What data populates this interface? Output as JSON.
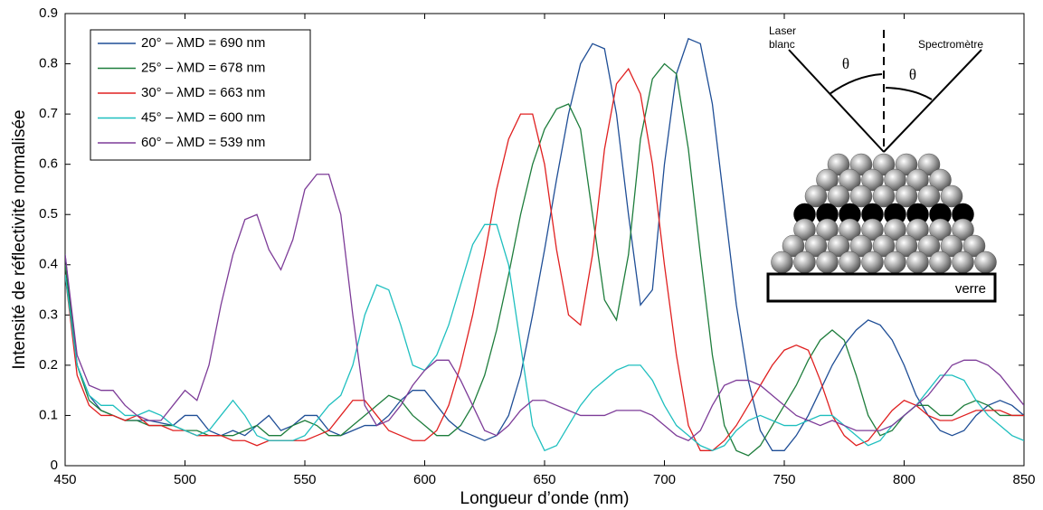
{
  "chart_data": {
    "type": "line",
    "x_label": "Longueur d’onde (nm)",
    "y_label": "Intensité de réflectivité normalisée",
    "xlim": [
      450,
      850
    ],
    "ylim": [
      0,
      0.9
    ],
    "xticks": [
      450,
      500,
      550,
      600,
      650,
      700,
      750,
      800,
      850
    ],
    "yticks": [
      0,
      0.1,
      0.2,
      0.3,
      0.4,
      0.5,
      0.6,
      0.7,
      0.8,
      0.9
    ],
    "legend": "upper left",
    "x": [
      450,
      455,
      460,
      465,
      470,
      475,
      480,
      485,
      490,
      495,
      500,
      505,
      510,
      515,
      520,
      525,
      530,
      535,
      540,
      545,
      550,
      555,
      560,
      565,
      570,
      575,
      580,
      585,
      590,
      595,
      600,
      605,
      610,
      615,
      620,
      625,
      630,
      635,
      640,
      645,
      650,
      655,
      660,
      665,
      670,
      675,
      680,
      685,
      690,
      695,
      700,
      705,
      710,
      715,
      720,
      725,
      730,
      735,
      740,
      745,
      750,
      755,
      760,
      765,
      770,
      775,
      780,
      785,
      790,
      795,
      800,
      805,
      810,
      815,
      820,
      825,
      830,
      835,
      840,
      845,
      850
    ],
    "series": [
      {
        "name": "20° – λMD = 690 nm",
        "color": "#1f4e96",
        "values": [
          0.42,
          0.2,
          0.14,
          0.11,
          0.1,
          0.09,
          0.09,
          0.09,
          0.085,
          0.08,
          0.1,
          0.1,
          0.07,
          0.06,
          0.07,
          0.06,
          0.08,
          0.1,
          0.07,
          0.08,
          0.1,
          0.1,
          0.07,
          0.06,
          0.07,
          0.08,
          0.08,
          0.1,
          0.13,
          0.15,
          0.15,
          0.12,
          0.09,
          0.07,
          0.06,
          0.05,
          0.06,
          0.1,
          0.18,
          0.3,
          0.43,
          0.57,
          0.7,
          0.8,
          0.84,
          0.83,
          0.7,
          0.5,
          0.32,
          0.35,
          0.6,
          0.78,
          0.85,
          0.84,
          0.72,
          0.52,
          0.32,
          0.17,
          0.07,
          0.03,
          0.03,
          0.06,
          0.1,
          0.15,
          0.2,
          0.24,
          0.27,
          0.29,
          0.28,
          0.25,
          0.2,
          0.14,
          0.1,
          0.07,
          0.06,
          0.07,
          0.1,
          0.12,
          0.13,
          0.12,
          0.1
        ]
      },
      {
        "name": "25° – λMD = 678 nm",
        "color": "#1e7d3c",
        "values": [
          0.4,
          0.2,
          0.13,
          0.11,
          0.1,
          0.09,
          0.09,
          0.08,
          0.08,
          0.08,
          0.07,
          0.07,
          0.06,
          0.06,
          0.06,
          0.07,
          0.08,
          0.06,
          0.06,
          0.08,
          0.09,
          0.08,
          0.06,
          0.06,
          0.08,
          0.1,
          0.12,
          0.14,
          0.13,
          0.1,
          0.08,
          0.06,
          0.06,
          0.08,
          0.12,
          0.18,
          0.27,
          0.38,
          0.5,
          0.6,
          0.67,
          0.71,
          0.72,
          0.67,
          0.5,
          0.33,
          0.29,
          0.42,
          0.65,
          0.77,
          0.8,
          0.78,
          0.63,
          0.42,
          0.22,
          0.08,
          0.03,
          0.02,
          0.04,
          0.08,
          0.12,
          0.16,
          0.21,
          0.25,
          0.27,
          0.25,
          0.18,
          0.1,
          0.06,
          0.07,
          0.1,
          0.12,
          0.12,
          0.1,
          0.1,
          0.12,
          0.13,
          0.12,
          0.1,
          0.1,
          0.1
        ]
      },
      {
        "name": "30° – λMD = 663 nm",
        "color": "#e02020",
        "values": [
          0.38,
          0.18,
          0.12,
          0.1,
          0.1,
          0.09,
          0.1,
          0.08,
          0.08,
          0.07,
          0.07,
          0.06,
          0.06,
          0.06,
          0.05,
          0.05,
          0.04,
          0.05,
          0.05,
          0.05,
          0.05,
          0.06,
          0.07,
          0.1,
          0.13,
          0.13,
          0.1,
          0.07,
          0.06,
          0.05,
          0.05,
          0.07,
          0.12,
          0.2,
          0.3,
          0.42,
          0.55,
          0.65,
          0.7,
          0.7,
          0.6,
          0.43,
          0.3,
          0.28,
          0.42,
          0.63,
          0.76,
          0.79,
          0.74,
          0.6,
          0.4,
          0.22,
          0.08,
          0.03,
          0.03,
          0.05,
          0.08,
          0.12,
          0.16,
          0.2,
          0.23,
          0.24,
          0.23,
          0.17,
          0.1,
          0.06,
          0.04,
          0.05,
          0.08,
          0.11,
          0.13,
          0.12,
          0.1,
          0.09,
          0.09,
          0.1,
          0.11,
          0.11,
          0.11,
          0.1,
          0.1
        ]
      },
      {
        "name": "45° – λMD = 600 nm",
        "color": "#1fbfbf",
        "values": [
          0.38,
          0.2,
          0.14,
          0.12,
          0.12,
          0.1,
          0.1,
          0.11,
          0.1,
          0.08,
          0.07,
          0.06,
          0.07,
          0.1,
          0.13,
          0.1,
          0.06,
          0.05,
          0.05,
          0.05,
          0.06,
          0.09,
          0.12,
          0.14,
          0.2,
          0.3,
          0.36,
          0.35,
          0.28,
          0.2,
          0.19,
          0.22,
          0.28,
          0.36,
          0.44,
          0.48,
          0.48,
          0.4,
          0.24,
          0.08,
          0.03,
          0.04,
          0.08,
          0.12,
          0.15,
          0.17,
          0.19,
          0.2,
          0.2,
          0.17,
          0.12,
          0.08,
          0.06,
          0.04,
          0.03,
          0.04,
          0.07,
          0.09,
          0.1,
          0.09,
          0.08,
          0.08,
          0.09,
          0.1,
          0.1,
          0.08,
          0.06,
          0.04,
          0.05,
          0.08,
          0.1,
          0.12,
          0.15,
          0.18,
          0.18,
          0.17,
          0.13,
          0.1,
          0.08,
          0.06,
          0.05
        ]
      },
      {
        "name": "60° – λMD = 539 nm",
        "color": "#7d3c98",
        "values": [
          0.42,
          0.22,
          0.16,
          0.15,
          0.15,
          0.12,
          0.1,
          0.09,
          0.09,
          0.12,
          0.15,
          0.13,
          0.2,
          0.32,
          0.42,
          0.49,
          0.5,
          0.43,
          0.39,
          0.45,
          0.55,
          0.58,
          0.58,
          0.5,
          0.3,
          0.12,
          0.08,
          0.09,
          0.12,
          0.16,
          0.19,
          0.21,
          0.21,
          0.17,
          0.12,
          0.07,
          0.06,
          0.08,
          0.11,
          0.13,
          0.13,
          0.12,
          0.11,
          0.1,
          0.1,
          0.1,
          0.11,
          0.11,
          0.11,
          0.1,
          0.08,
          0.06,
          0.05,
          0.07,
          0.12,
          0.16,
          0.17,
          0.17,
          0.16,
          0.14,
          0.12,
          0.1,
          0.09,
          0.08,
          0.09,
          0.08,
          0.07,
          0.07,
          0.07,
          0.08,
          0.1,
          0.12,
          0.14,
          0.17,
          0.2,
          0.21,
          0.21,
          0.2,
          0.18,
          0.15,
          0.12
        ]
      }
    ],
    "annotations": {
      "source": [
        "Laser",
        "blanc"
      ],
      "detector": "Spectromètre",
      "angle_left": "θ",
      "angle_right": "θ",
      "substrate": "verre"
    }
  }
}
